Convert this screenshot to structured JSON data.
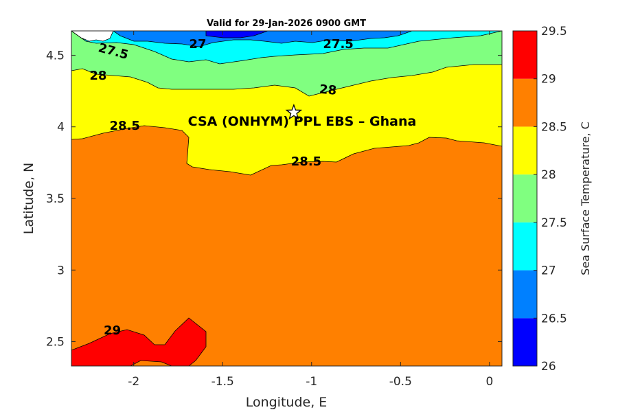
{
  "chart_data": {
    "type": "heatmap",
    "subtype": "filled-contour",
    "title": "Valid for 29-Jan-2026 0900 GMT",
    "xlabel": "Longitude, E",
    "ylabel": "Latitude, N",
    "xlim": [
      -2.35,
      0.07
    ],
    "ylim": [
      2.33,
      4.67
    ],
    "xticks": [
      -2,
      -1.5,
      -1,
      -0.5,
      0
    ],
    "xtick_labels": [
      "-2",
      "-1.5",
      "-1",
      "-0.5",
      "0"
    ],
    "yticks": [
      2.5,
      3,
      3.5,
      4,
      4.5
    ],
    "ytick_labels": [
      "2.5",
      "3",
      "3.5",
      "4",
      "4.5"
    ],
    "colorbar": {
      "label": "Sea Surface Temperature, C",
      "levels": [
        26,
        26.5,
        27,
        27.5,
        28,
        28.5,
        29,
        29.5
      ],
      "level_labels": [
        "26",
        "26.5",
        "27",
        "27.5",
        "28",
        "28.5",
        "29",
        "29.5"
      ],
      "colors": [
        "#0000ff",
        "#0080ff",
        "#00ffff",
        "#80ff80",
        "#ffff00",
        "#ff8000",
        "#ff0000"
      ]
    },
    "contour_labels": [
      {
        "text": "27.5",
        "lon": -2.12,
        "lat": 4.5,
        "angle": 15
      },
      {
        "text": "27",
        "lon": -1.64,
        "lat": 4.55,
        "angle": 0
      },
      {
        "text": "27.5",
        "lon": -0.85,
        "lat": 4.55,
        "angle": 0
      },
      {
        "text": "28",
        "lon": -2.2,
        "lat": 4.33,
        "angle": 0
      },
      {
        "text": "28",
        "lon": -0.91,
        "lat": 4.23,
        "angle": 5
      },
      {
        "text": "28.5",
        "lon": -2.05,
        "lat": 3.98,
        "angle": 0
      },
      {
        "text": "28.5",
        "lon": -1.03,
        "lat": 3.73,
        "angle": 0
      },
      {
        "text": "29",
        "lon": -2.12,
        "lat": 2.55,
        "angle": 0
      }
    ],
    "site": {
      "label": "CSA (ONHYM) PPL EBS  – Ghana",
      "lon": -1.1,
      "lat": 4.1,
      "marker": "star"
    },
    "grid": false,
    "legend": "colorbar-right"
  }
}
